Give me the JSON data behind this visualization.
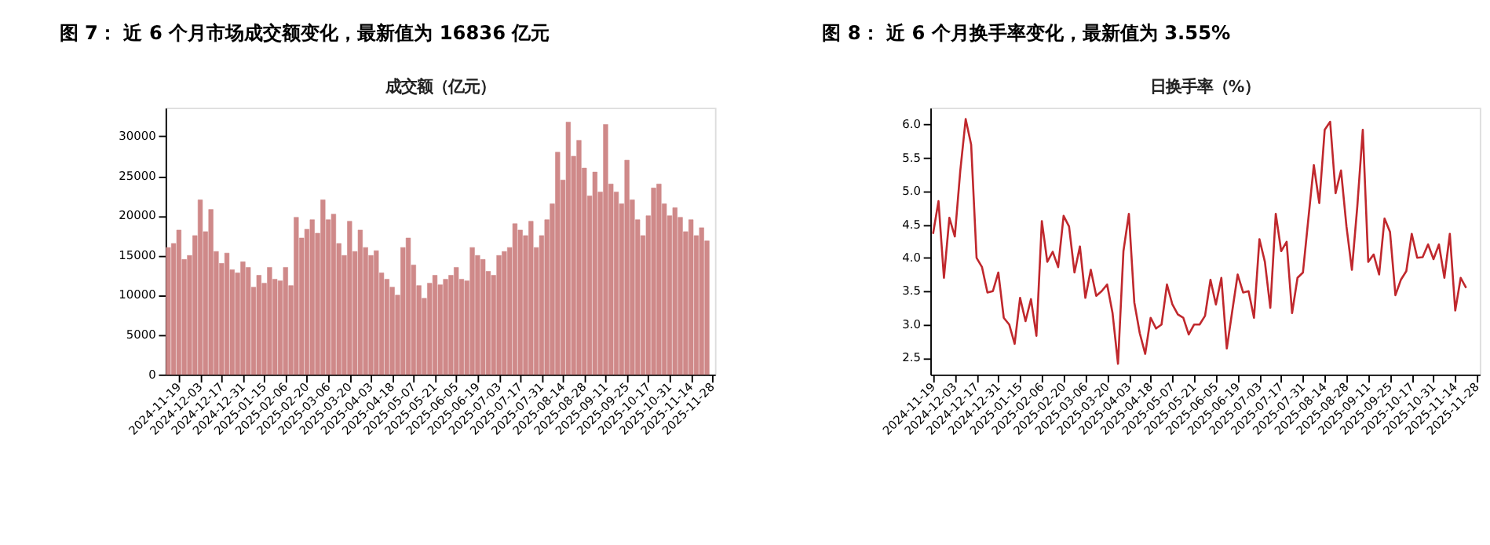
{
  "chart_data": [
    {
      "type": "bar",
      "title": "图 7：  近 6 个月市场成交额变化，最新值为 16836 亿元",
      "subtitle": "成交额（亿元）",
      "categories": [
        null,
        null,
        "2024-11-19",
        null,
        null,
        null,
        "2024-12-03",
        null,
        null,
        null,
        "2024-12-17",
        null,
        null,
        null,
        "2024-12-31",
        null,
        null,
        null,
        "2025-01-15",
        null,
        null,
        null,
        "2025-02-06",
        null,
        null,
        null,
        "2025-02-20",
        null,
        null,
        null,
        "2025-03-06",
        null,
        null,
        null,
        "2025-03-20",
        null,
        null,
        null,
        "2025-04-03",
        null,
        null,
        null,
        "2025-04-18",
        null,
        null,
        null,
        "2025-05-07",
        null,
        null,
        null,
        "2025-05-21",
        null,
        null,
        null,
        "2025-06-05",
        null,
        null,
        null,
        "2025-06-19",
        null,
        null,
        null,
        "2025-07-03",
        null,
        null,
        null,
        "2025-07-17",
        null,
        null,
        null,
        "2025-07-31",
        null,
        null,
        null,
        "2025-08-14",
        null,
        null,
        null,
        "2025-08-28",
        null,
        null,
        null,
        "2025-09-11",
        null,
        null,
        null,
        "2025-09-25",
        null,
        null,
        null,
        "2025-10-17",
        null,
        null,
        null,
        "2025-10-31",
        null,
        null,
        null,
        "2025-11-14",
        null,
        null,
        null,
        "2025-11-28"
      ],
      "series": [
        {
          "color": "#cd8383",
          "values": [
            16000,
            16500,
            18200,
            14500,
            15000,
            17500,
            22000,
            18000,
            20800,
            15500,
            14000,
            15300,
            13200,
            12800,
            14200,
            13500,
            11000,
            12500,
            11500,
            13500,
            12000,
            11800,
            13500,
            11200,
            19800,
            17200,
            18300,
            19500,
            17800,
            22000,
            19500,
            20200,
            16500,
            15000,
            19300,
            15500,
            18200,
            16000,
            15000,
            15600,
            12800,
            12000,
            11000,
            10000,
            16000,
            17200,
            13800,
            11200,
            9600,
            11500,
            12500,
            11300,
            12000,
            12500,
            13500,
            12000,
            11800,
            16000,
            15000,
            14500,
            13000,
            12500,
            15000,
            15500,
            16000,
            19000,
            18200,
            17500,
            19300,
            16000,
            17500,
            19500,
            21500,
            28000,
            24500,
            31800,
            27500,
            29500,
            26000,
            22500,
            25500,
            23000,
            31500,
            24000,
            23000,
            21500,
            27000,
            22000,
            19500,
            17500,
            20000,
            23500,
            24000,
            21500,
            20000,
            21000,
            19800,
            18000,
            19500,
            17500,
            18500,
            16836,
            null
          ]
        }
      ],
      "ylim": [
        0,
        33600
      ],
      "yticks": [
        0,
        5000,
        10000,
        15000,
        20000,
        25000,
        30000
      ],
      "grid": false
    },
    {
      "type": "line",
      "title": "图 8：  近 6 个月换手率变化，最新值为 3.55%",
      "subtitle": "日换手率（%）",
      "categories": [
        "2024-11-19",
        null,
        null,
        null,
        "2024-12-03",
        null,
        null,
        null,
        "2024-12-17",
        null,
        null,
        null,
        "2024-12-31",
        null,
        null,
        null,
        "2025-01-15",
        null,
        null,
        null,
        "2025-02-06",
        null,
        null,
        null,
        "2025-02-20",
        null,
        null,
        null,
        "2025-03-06",
        null,
        null,
        null,
        "2025-03-20",
        null,
        null,
        null,
        "2025-04-03",
        null,
        null,
        null,
        "2025-04-18",
        null,
        null,
        null,
        "2025-05-07",
        null,
        null,
        null,
        "2025-05-21",
        null,
        null,
        null,
        "2025-06-05",
        null,
        null,
        null,
        "2025-06-19",
        null,
        null,
        null,
        "2025-07-03",
        null,
        null,
        null,
        "2025-07-17",
        null,
        null,
        null,
        "2025-07-31",
        null,
        null,
        null,
        "2025-08-14",
        null,
        null,
        null,
        "2025-08-28",
        null,
        null,
        null,
        "2025-09-11",
        null,
        null,
        null,
        "2025-09-25",
        null,
        null,
        null,
        "2025-10-17",
        null,
        null,
        null,
        "2025-10-31",
        null,
        null,
        null,
        "2025-11-14",
        null,
        null,
        null,
        "2025-11-28"
      ],
      "series": [
        {
          "color": "#c0282d",
          "values": [
            4.36,
            4.85,
            3.7,
            4.6,
            4.32,
            5.3,
            6.08,
            5.7,
            4.0,
            3.86,
            3.48,
            3.5,
            3.78,
            3.1,
            3.0,
            2.71,
            3.4,
            3.05,
            3.38,
            2.83,
            4.55,
            3.94,
            4.09,
            3.86,
            4.63,
            4.47,
            3.78,
            4.17,
            3.4,
            3.82,
            3.43,
            3.5,
            3.6,
            3.17,
            2.41,
            4.1,
            4.66,
            3.33,
            2.87,
            2.56,
            3.1,
            2.94,
            3.0,
            3.6,
            3.3,
            3.15,
            3.1,
            2.85,
            3.0,
            3.0,
            3.13,
            3.67,
            3.3,
            3.7,
            2.64,
            3.2,
            3.75,
            3.48,
            3.5,
            3.1,
            4.28,
            3.94,
            3.25,
            4.66,
            4.1,
            4.24,
            3.17,
            3.7,
            3.78,
            4.59,
            5.39,
            4.82,
            5.92,
            6.04,
            4.97,
            5.31,
            4.47,
            3.82,
            4.78,
            5.92,
            3.94,
            4.05,
            3.75,
            4.59,
            4.39,
            3.44,
            3.67,
            3.8,
            4.36,
            4.0,
            4.01,
            4.2,
            3.98,
            4.2,
            3.7,
            4.36,
            3.21,
            3.7,
            3.55,
            null,
            null
          ]
        }
      ],
      "ylim": [
        2.25,
        6.25
      ],
      "yticks": [
        {
          "value": 2.5,
          "label": "2.5"
        },
        {
          "value": 3,
          "label": "3.0"
        },
        {
          "value": 3.5,
          "label": "3.5"
        },
        {
          "value": 4,
          "label": "4.0"
        },
        {
          "value": 4.5,
          "label": "4.5"
        },
        {
          "value": 5,
          "label": "5.0"
        },
        {
          "value": 5.5,
          "label": "5.5"
        },
        {
          "value": 6,
          "label": "6.0"
        }
      ],
      "grid": false,
      "marker": "none",
      "line_style": "solid"
    }
  ]
}
